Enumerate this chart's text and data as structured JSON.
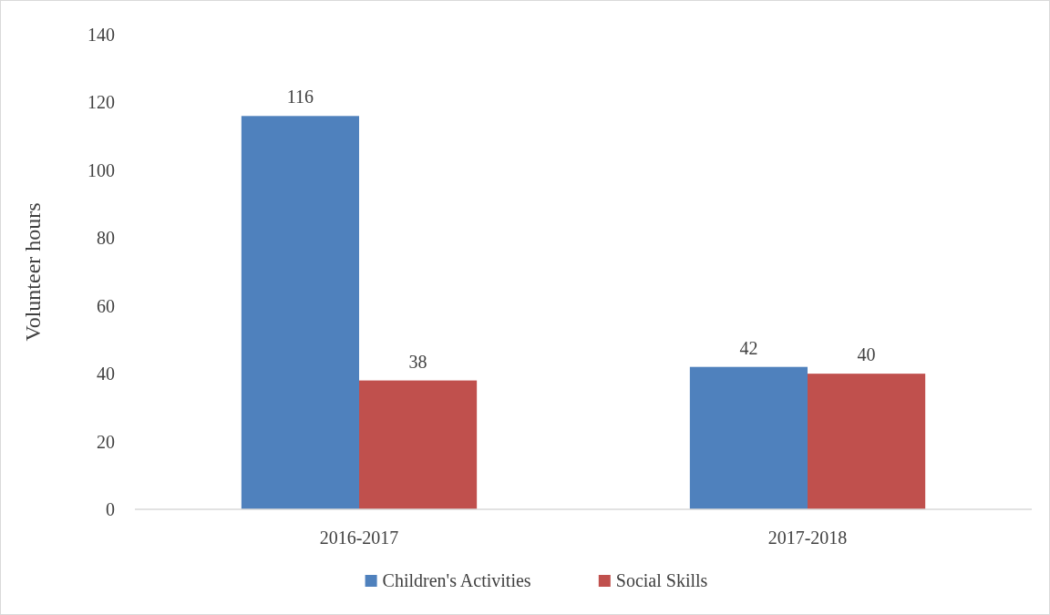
{
  "chart_data": {
    "type": "bar",
    "ylabel": "Volunteer hours",
    "categories": [
      "2016-2017",
      "2017-2018"
    ],
    "series": [
      {
        "name": "Children's Activities",
        "color": "#4f81bd",
        "values": [
          116,
          42
        ]
      },
      {
        "name": "Social Skills",
        "color": "#c0504d",
        "values": [
          38,
          40
        ]
      }
    ],
    "ylim": [
      0,
      140
    ],
    "yticks": [
      0,
      20,
      40,
      60,
      80,
      100,
      120,
      140
    ],
    "grid": false,
    "legend": "bottom",
    "data_labels": true
  }
}
